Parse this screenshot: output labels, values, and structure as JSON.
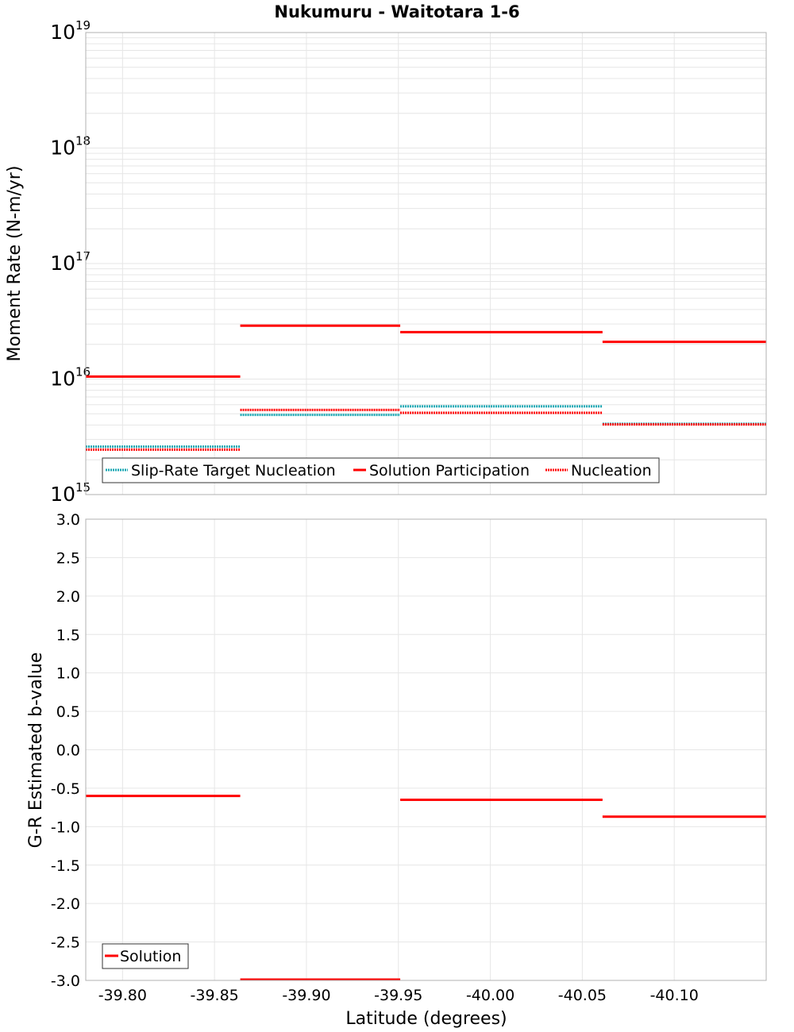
{
  "title": "Nukumuru - Waitotara 1-6",
  "colors": {
    "target": "#1aa7b3",
    "solution": "#ff0000",
    "nucleation": "#ff0000",
    "grid": "#e6e6e6",
    "frame": "#b0b0b0"
  },
  "chart_data": [
    {
      "type": "line",
      "name": "moment-rate",
      "ylabel": "Moment Rate (N-m/yr)",
      "yscale": "log",
      "ylim_exp": [
        15,
        19
      ],
      "ytick_base": "10",
      "ytick_exponents": [
        "15",
        "16",
        "17",
        "18",
        "19"
      ],
      "xlim": [
        -39.78,
        -40.15
      ],
      "legend": {
        "position": "bottom-left",
        "entries": [
          {
            "label": "Slip-Rate Target Nucleation",
            "style": "dotted",
            "color": "#1aa7b3"
          },
          {
            "label": "Solution Participation",
            "style": "solid",
            "color": "#ff0000"
          },
          {
            "label": "Nucleation",
            "style": "dotted",
            "color": "#ff0000"
          }
        ]
      },
      "series": [
        {
          "name": "Slip-Rate Target Nucleation",
          "style": "dotted",
          "color": "#1aa7b3",
          "segments": [
            [
              -39.78,
              -39.864,
              2600000000000000.0
            ],
            [
              -39.864,
              -39.951,
              4900000000000000.0
            ],
            [
              -39.951,
              -40.061,
              5800000000000000.0
            ],
            [
              -40.061,
              -40.15,
              4100000000000000.0
            ]
          ]
        },
        {
          "name": "Solution Participation",
          "style": "solid",
          "color": "#ff0000",
          "segments": [
            [
              -39.78,
              -39.864,
              1.05e+16
            ],
            [
              -39.864,
              -39.951,
              2.9e+16
            ],
            [
              -39.951,
              -40.061,
              2.55e+16
            ],
            [
              -40.061,
              -40.15,
              2.1e+16
            ]
          ]
        },
        {
          "name": "Nucleation",
          "style": "dotted",
          "color": "#ff0000",
          "segments": [
            [
              -39.78,
              -39.864,
              2450000000000000.0
            ],
            [
              -39.864,
              -39.951,
              5400000000000000.0
            ],
            [
              -39.951,
              -40.061,
              5100000000000000.0
            ],
            [
              -40.061,
              -40.15,
              4050000000000000.0
            ]
          ]
        }
      ]
    },
    {
      "type": "line",
      "name": "b-value",
      "ylabel": "G-R Estimated b-value",
      "xlabel": "Latitude (degrees)",
      "ylim": [
        -3.0,
        3.0
      ],
      "yticks": [
        "3.0",
        "2.5",
        "2.0",
        "1.5",
        "1.0",
        "0.5",
        "0.0",
        "-0.5",
        "-1.0",
        "-1.5",
        "-2.0",
        "-2.5",
        "-3.0"
      ],
      "xlim": [
        -39.78,
        -40.15
      ],
      "xticks": [
        "-39.80",
        "-39.85",
        "-39.90",
        "-39.95",
        "-40.00",
        "-40.05",
        "-40.10"
      ],
      "legend": {
        "position": "bottom-left",
        "entries": [
          {
            "label": "Solution",
            "style": "solid",
            "color": "#ff0000"
          }
        ]
      },
      "series": [
        {
          "name": "Solution",
          "style": "solid",
          "color": "#ff0000",
          "segments": [
            [
              -39.78,
              -39.864,
              -0.6
            ],
            [
              -39.864,
              -39.951,
              -3.0
            ],
            [
              -39.951,
              -40.061,
              -0.65
            ],
            [
              -40.061,
              -40.15,
              -0.87
            ]
          ]
        }
      ]
    }
  ]
}
